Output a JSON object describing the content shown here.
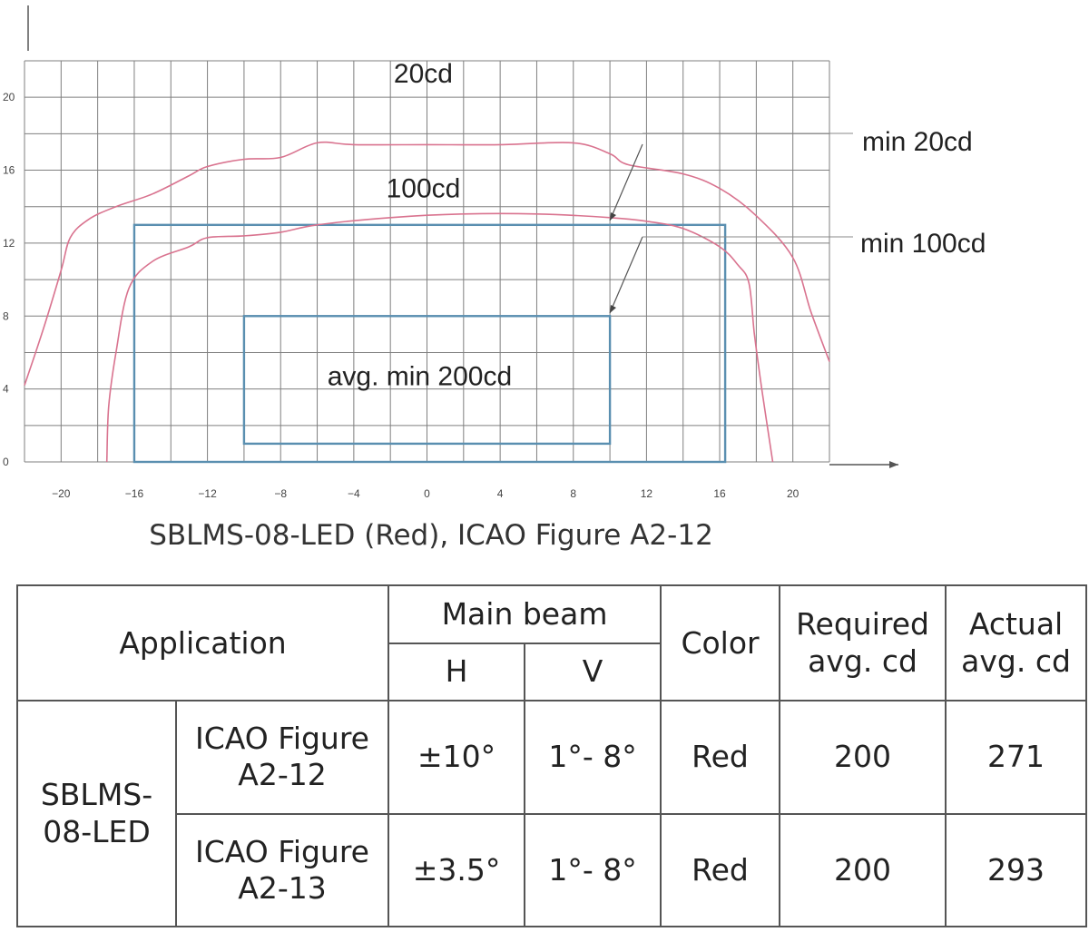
{
  "chart_data": {
    "type": "line",
    "xlim": [
      -22,
      22
    ],
    "ylim": [
      0,
      22
    ],
    "x_ticks": [
      -20,
      -16,
      -12,
      -8,
      -4,
      0,
      4,
      8,
      12,
      16,
      20
    ],
    "y_ticks": [
      0,
      4,
      8,
      12,
      16,
      20
    ],
    "grid": true,
    "series": [
      {
        "name": "20cd",
        "color": "#d9738f",
        "points": [
          [
            -22,
            4.2
          ],
          [
            -21,
            7.2
          ],
          [
            -20,
            10.5
          ],
          [
            -19.5,
            12.3
          ],
          [
            -18.5,
            13.3
          ],
          [
            -17,
            14
          ],
          [
            -15,
            14.7
          ],
          [
            -13,
            15.7
          ],
          [
            -12,
            16.2
          ],
          [
            -10,
            16.6
          ],
          [
            -8,
            16.7
          ],
          [
            -6,
            17.5
          ],
          [
            -4,
            17.4
          ],
          [
            0,
            17.4
          ],
          [
            4,
            17.4
          ],
          [
            8,
            17.5
          ],
          [
            10,
            16.9
          ],
          [
            11,
            16.3
          ],
          [
            14,
            15.8
          ],
          [
            16,
            15
          ],
          [
            18,
            13.5
          ],
          [
            20,
            11.2
          ],
          [
            21,
            8.2
          ],
          [
            22,
            5.5
          ]
        ]
      },
      {
        "name": "100cd",
        "color": "#d9738f",
        "points": [
          [
            -17.5,
            0
          ],
          [
            -17.4,
            3
          ],
          [
            -17,
            6
          ],
          [
            -16.3,
            9.5
          ],
          [
            -15,
            11
          ],
          [
            -13,
            11.8
          ],
          [
            -12,
            12.3
          ],
          [
            -10,
            12.4
          ],
          [
            -8,
            12.6
          ],
          [
            -6,
            13
          ],
          [
            -2,
            13.4
          ],
          [
            2,
            13.6
          ],
          [
            6,
            13.6
          ],
          [
            10,
            13.4
          ],
          [
            12,
            13.2
          ],
          [
            14,
            12.8
          ],
          [
            16,
            11.8
          ],
          [
            17,
            10.8
          ],
          [
            17.6,
            9.8
          ],
          [
            17.9,
            7
          ],
          [
            18.3,
            4
          ],
          [
            18.9,
            0
          ]
        ]
      }
    ],
    "rectangles": [
      {
        "x0": -16,
        "x1": 16.3,
        "y0": 0,
        "y1": 13,
        "color": "#5a8fb0"
      },
      {
        "x0": -10,
        "x1": 10,
        "y0": 1,
        "y1": 8,
        "color": "#5a8fb0"
      }
    ],
    "annotations": [
      {
        "text": "20cd",
        "x": -0.2,
        "y": 20.8
      },
      {
        "text": "100cd",
        "x": -0.2,
        "y": 14.5
      },
      {
        "text": "avg. min 200cd",
        "x": -0.4,
        "y": 4.2
      },
      {
        "text": "min 20cd"
      },
      {
        "text": "min 100cd"
      }
    ]
  },
  "caption": "SBLMS-08-LED (Red), ICAO Figure A2-12",
  "table": {
    "headers": {
      "application": "Application",
      "main_beam": "Main beam",
      "h": "H",
      "v": "V",
      "color": "Color",
      "required": "Required avg. cd",
      "actual": "Actual avg. cd"
    },
    "product": "SBLMS-08-LED",
    "rows": [
      {
        "figure": "ICAO Figure A2-12",
        "h": "±10°",
        "v": "1°- 8°",
        "color": "Red",
        "required": "200",
        "actual": "271"
      },
      {
        "figure": "ICAO Figure A2-13",
        "h": "±3.5°",
        "v": "1°- 8°",
        "color": "Red",
        "required": "200",
        "actual": "293"
      }
    ]
  }
}
